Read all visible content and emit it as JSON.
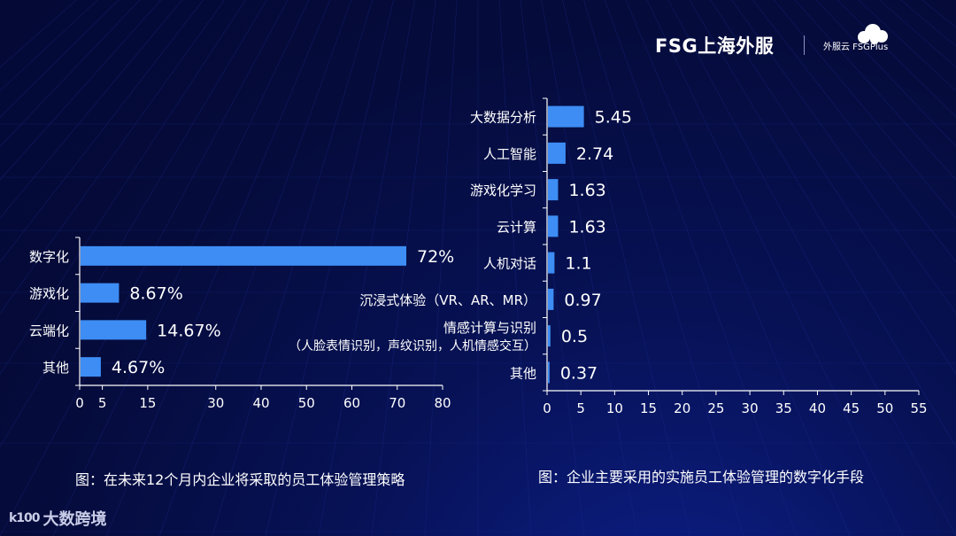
{
  "branding": {
    "logo_text": "FSG上海外服",
    "plus_text": "外服云 FSGPlus",
    "watermark_mark": "k100",
    "watermark_text": "大数跨境"
  },
  "colors": {
    "background": "#050b3a",
    "bar": "#3d8df5",
    "axis": "#ffffff"
  },
  "chart_data": [
    {
      "type": "bar",
      "orientation": "horizontal",
      "caption": "图：在未来12个月内企业将采取的员工体验管理策略",
      "categories": [
        "数字化",
        "游戏化",
        "云端化",
        "其他"
      ],
      "values": [
        72,
        8.67,
        14.67,
        4.67
      ],
      "value_labels": [
        "72%",
        "8.67%",
        "14.67%",
        "4.67%"
      ],
      "xticks": [
        0,
        5,
        15,
        30,
        40,
        50,
        60,
        70,
        80
      ],
      "xlim": [
        0,
        80
      ],
      "grid": false,
      "legend": "none"
    },
    {
      "type": "bar",
      "orientation": "horizontal",
      "caption": "图：企业主要采用的实施员工体验管理的数字化手段",
      "categories": [
        "大数据分析",
        "人工智能",
        "游戏化学习",
        "云计算",
        "人机对话",
        "沉浸式体验（VR、AR、MR）",
        "情感计算与识别",
        "其他"
      ],
      "category_sublabels": [
        "",
        "",
        "",
        "",
        "",
        "",
        "（人脸表情识别，声纹识别，人机情感交互）",
        ""
      ],
      "values": [
        5.45,
        2.74,
        1.63,
        1.63,
        1.1,
        0.97,
        0.5,
        0.37
      ],
      "value_labels": [
        "5.45",
        "2.74",
        "1.63",
        "1.63",
        "1.1",
        "0.97",
        "0.5",
        "0.37"
      ],
      "xticks": [
        0,
        5,
        10,
        15,
        20,
        25,
        30,
        35,
        40,
        45,
        50,
        55
      ],
      "xlim": [
        0,
        55
      ],
      "grid": false,
      "legend": "none"
    }
  ]
}
